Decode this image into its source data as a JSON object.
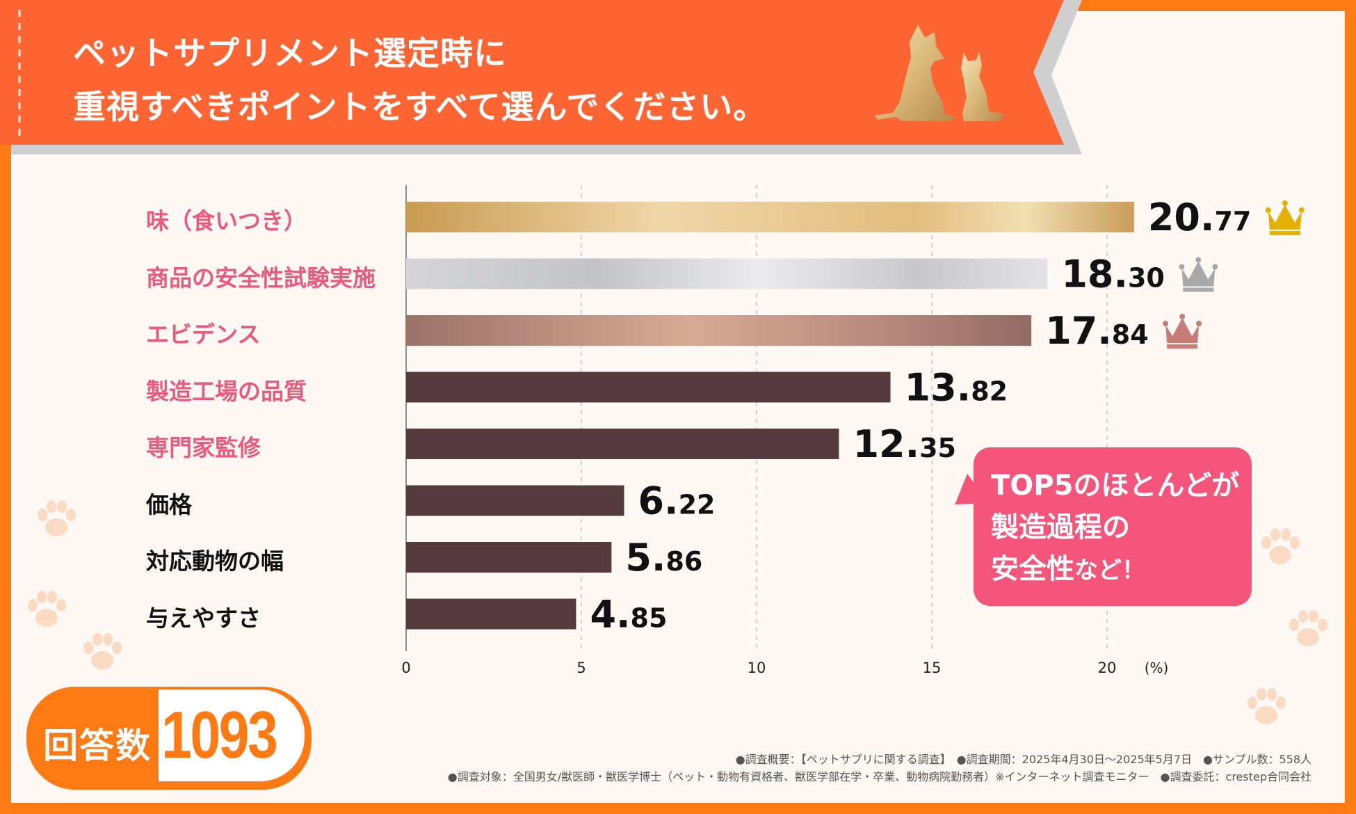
{
  "title": {
    "line1": "ペットサプリメント選定時に",
    "line2": "重視すべきポイントをすべて選んでください。"
  },
  "chart_data": {
    "type": "bar",
    "orientation": "horizontal",
    "unit": "(%)",
    "categories": [
      "味（食いつき）",
      "商品の安全性試験実施",
      "エビデンス",
      "製造工場の品質",
      "専門家監修",
      "価格",
      "対応動物の幅",
      "与えやすさ"
    ],
    "values": [
      20.77,
      18.3,
      17.84,
      13.82,
      12.35,
      6.22,
      5.86,
      4.85
    ],
    "value_labels": [
      {
        "int": "20.",
        "dec": "77"
      },
      {
        "int": "18.",
        "dec": "30"
      },
      {
        "int": "17.",
        "dec": "84"
      },
      {
        "int": "13.",
        "dec": "82"
      },
      {
        "int": "12.",
        "dec": "35"
      },
      {
        "int": "6.",
        "dec": "22"
      },
      {
        "int": "5.",
        "dec": "86"
      },
      {
        "int": "4.",
        "dec": "85"
      }
    ],
    "xlim": [
      0,
      20
    ],
    "xticks": [
      "0",
      "5",
      "10",
      "15",
      "20"
    ],
    "grid": true,
    "highlight_top": 5,
    "crowns": [
      "gold",
      "silver",
      "bronze"
    ]
  },
  "colors": {
    "orange": "#ff7a12",
    "banner": "#ff6433",
    "pink_label": "#e85a7e",
    "dark_bar": "#553b3f",
    "callout": "#f5557a",
    "gold_crown": "#e3b100",
    "silver_crown": "#a9a9a9",
    "bronze_crown": "#c87c78"
  },
  "callout": {
    "line1": "TOP5のほとんどが",
    "line2": "製造過程の",
    "line3_big": "安全性",
    "line3_small": "など！"
  },
  "respondents": {
    "label": "回答数",
    "value": "1093"
  },
  "footer": {
    "line1": "●調査概要：【ペットサプリに関する調査】　●調査期間：2025年4月30日～2025年5月7日　●サンプル数：558人",
    "line2": "●調査対象：全国男女/獣医師・獣医学博士（ペット・動物有資格者、獣医学部在学・卒業、動物病院勤務者）※インターネット調査モニター　●調査委託：crestep合同会社"
  },
  "icons": {
    "dogs": "dog-cat-silhouette-icon",
    "crown": "crown-icon",
    "paw": "paw-icon"
  }
}
